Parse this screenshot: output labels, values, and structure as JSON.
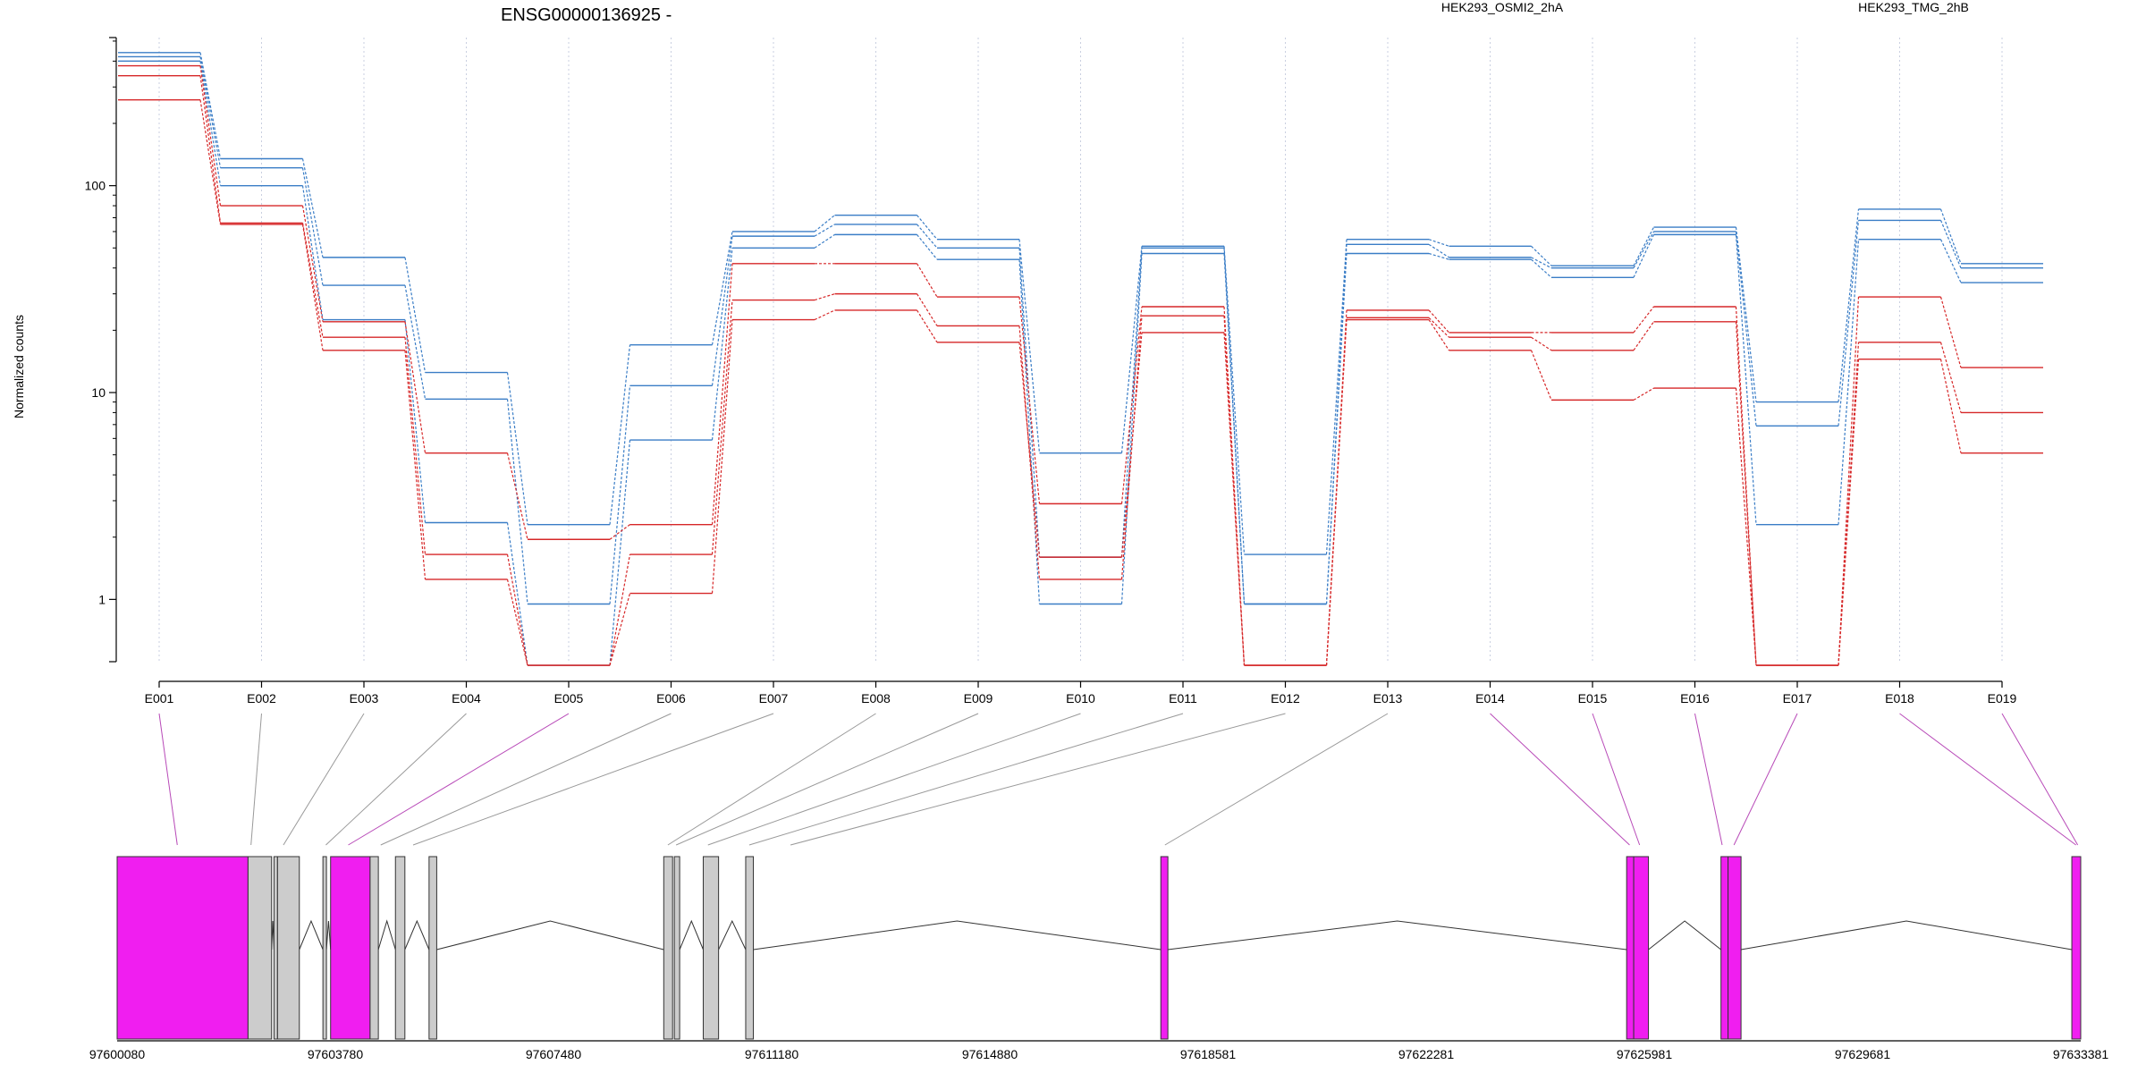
{
  "chart_data": {
    "type": "line",
    "title": "ENSG00000136925 -",
    "ylabel": "Normalized counts",
    "xlabel": "",
    "yscale": "log",
    "ylim": [
      0.5,
      520
    ],
    "yticks": [
      "1",
      "10",
      "100"
    ],
    "grid": "vertical dotted lines at each exon",
    "legend": [
      "HEK293_OSMI2_2hA",
      "HEK293_TMG_2hB"
    ],
    "colors": {
      "HEK293_OSMI2_2hA": "#d62728",
      "HEK293_TMG_2hB": "#3a7dc6",
      "highlight_exon": "#f01ef0",
      "exon": "#cccccc"
    },
    "categories": [
      "E001",
      "E002",
      "E003",
      "E004",
      "E005",
      "E006",
      "E007",
      "E008",
      "E009",
      "E010",
      "E011",
      "E012",
      "E013",
      "E014",
      "E015",
      "E016",
      "E017",
      "E018",
      "E019"
    ],
    "series": [
      {
        "group": "HEK293_TMG_2hB",
        "values": [
          440,
          135,
          45,
          12.5,
          2.3,
          17,
          60,
          72,
          55,
          5.1,
          51,
          1.65,
          55,
          51,
          41,
          63,
          9,
          77,
          42
        ]
      },
      {
        "group": "HEK293_TMG_2hB",
        "values": [
          420,
          122,
          33,
          9.3,
          0.95,
          10.8,
          57,
          65,
          50,
          1.6,
          50,
          0.95,
          52,
          45,
          40,
          60,
          6.9,
          68,
          40
        ]
      },
      {
        "group": "HEK293_TMG_2hB",
        "values": [
          400,
          100,
          22.5,
          2.35,
          0.48,
          5.9,
          50,
          58,
          44,
          0.95,
          47,
          0.95,
          47,
          44,
          36,
          58,
          2.3,
          55,
          34
        ]
      },
      {
        "group": "HEK293_OSMI2_2hA",
        "values": [
          380,
          80,
          22,
          5.1,
          1.95,
          2.3,
          42,
          42,
          29,
          2.9,
          26,
          0.48,
          25,
          19.5,
          19.5,
          26,
          0.48,
          29,
          13.2
        ]
      },
      {
        "group": "HEK293_OSMI2_2hA",
        "values": [
          340,
          66,
          18.5,
          1.65,
          0.48,
          1.65,
          28,
          30,
          21,
          1.25,
          23.5,
          0.48,
          23,
          18.5,
          16,
          22,
          0.48,
          17.5,
          8
        ]
      },
      {
        "group": "HEK293_OSMI2_2hA",
        "values": [
          260,
          65,
          16,
          1.25,
          0.48,
          1.07,
          22.5,
          25,
          17.5,
          1.6,
          19.5,
          0.48,
          22.5,
          16,
          9.2,
          10.5,
          0.48,
          14.5,
          5.1
        ]
      }
    ],
    "genomic_axis": {
      "ticks": [
        "97600080",
        "97603780",
        "97607480",
        "97611180",
        "97614880",
        "97618581",
        "97622281",
        "97625981",
        "97629681",
        "97633381"
      ],
      "range": [
        97600080,
        97633381
      ]
    },
    "gene_model": {
      "exons": [
        {
          "start": 97600080,
          "end": 97602300,
          "highlight": true
        },
        {
          "start": 97602300,
          "end": 97602700,
          "highlight": false
        },
        {
          "start": 97602740,
          "end": 97602800,
          "highlight": false
        },
        {
          "start": 97602800,
          "end": 97603170,
          "highlight": false
        },
        {
          "start": 97603570,
          "end": 97603630,
          "highlight": false
        },
        {
          "start": 97603700,
          "end": 97604370,
          "highlight": true
        },
        {
          "start": 97604370,
          "end": 97604510,
          "highlight": false
        },
        {
          "start": 97604800,
          "end": 97604960,
          "highlight": false
        },
        {
          "start": 97605370,
          "end": 97605500,
          "highlight": false
        },
        {
          "start": 97609350,
          "end": 97609500,
          "highlight": false
        },
        {
          "start": 97609530,
          "end": 97609620,
          "highlight": false
        },
        {
          "start": 97610020,
          "end": 97610280,
          "highlight": false
        },
        {
          "start": 97610740,
          "end": 97610870,
          "highlight": false
        },
        {
          "start": 97617780,
          "end": 97617900,
          "highlight": true
        },
        {
          "start": 97625680,
          "end": 97625800,
          "highlight": true
        },
        {
          "start": 97625800,
          "end": 97626050,
          "highlight": true
        },
        {
          "start": 97627280,
          "end": 97627400,
          "highlight": true
        },
        {
          "start": 97627400,
          "end": 97627620,
          "highlight": true
        },
        {
          "start": 97633230,
          "end": 97633381,
          "highlight": true
        }
      ],
      "exon_labels": [
        "E001",
        "E002",
        "E003",
        "E004",
        "E005",
        "E006",
        "E007",
        "E008",
        "E009",
        "E010",
        "E011",
        "E012",
        "E013",
        "E014",
        "E015",
        "E016",
        "E017",
        "E018",
        "E019"
      ],
      "exon_highlight": [
        true,
        false,
        false,
        false,
        true,
        false,
        false,
        false,
        false,
        false,
        false,
        false,
        false,
        true,
        true,
        true,
        true,
        true,
        true
      ],
      "exon_positions": [
        97601100,
        97602350,
        97602900,
        97603620,
        97604000,
        97604550,
        97605100,
        97609420,
        97609560,
        97610100,
        97610800,
        97611500,
        97617850,
        97625730,
        97625900,
        97627300,
        97627500,
        97633300,
        97633330
      ]
    }
  }
}
